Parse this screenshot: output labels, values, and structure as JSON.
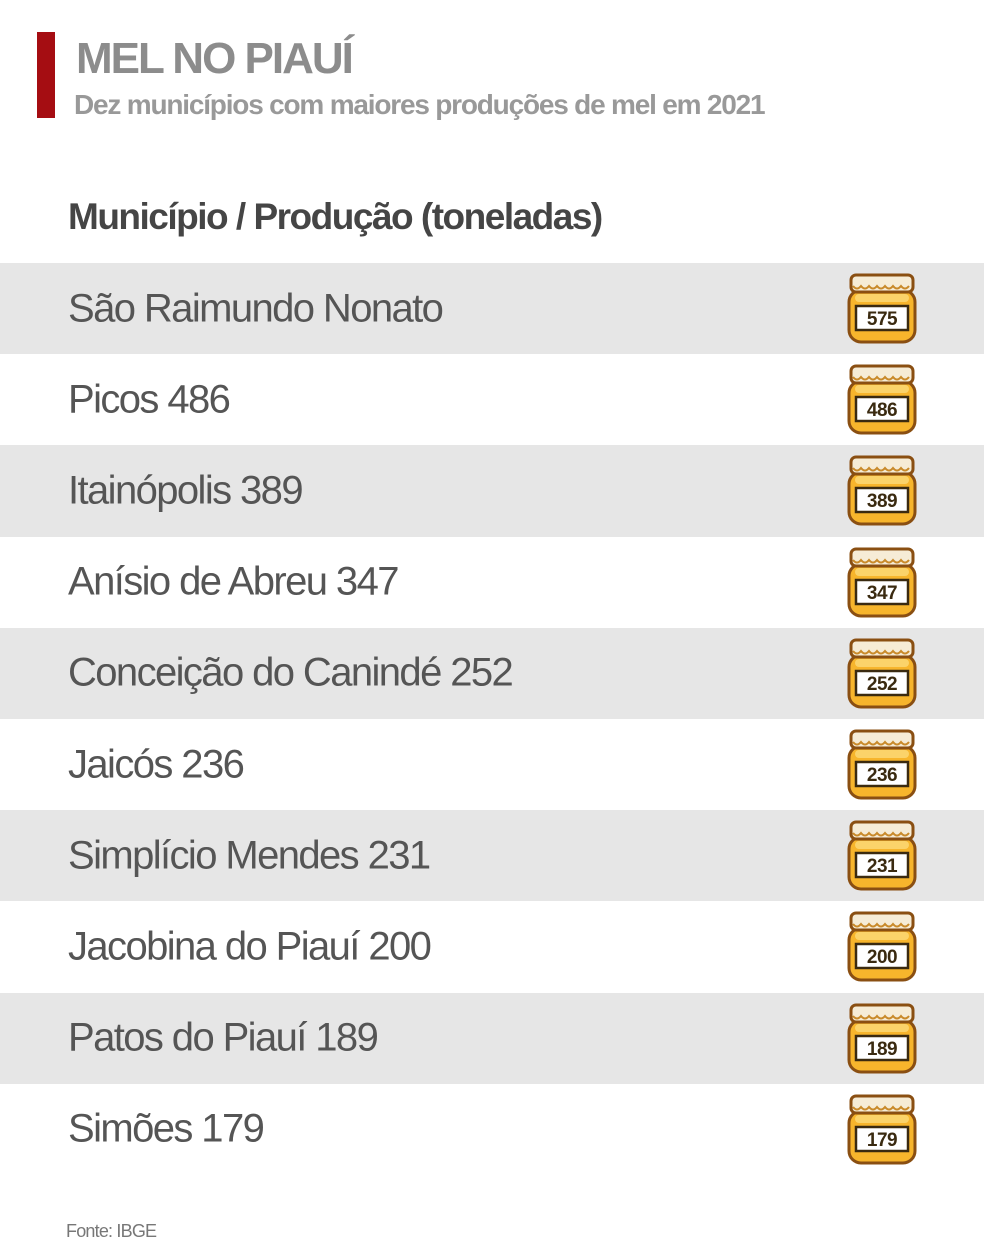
{
  "header": {
    "title": "MEL NO PIAUÍ",
    "subtitle": "Dez municípios  com maiores produções de mel em 2021"
  },
  "table": {
    "heading": "Município / Produção (toneladas)",
    "rows": [
      {
        "label": "São Raimundo Nonato",
        "jar": 575
      },
      {
        "label": "Picos 486",
        "jar": 486
      },
      {
        "label": "Itainópolis 389",
        "jar": 389
      },
      {
        "label": "Anísio de Abreu 347",
        "jar": 347
      },
      {
        "label": "Conceição do Canindé 252",
        "jar": 252
      },
      {
        "label": "Jaicós 236",
        "jar": 236
      },
      {
        "label": "Simplício Mendes 231",
        "jar": 231
      },
      {
        "label": "Jacobina do Piauí 200",
        "jar": 200
      },
      {
        "label": "Patos do Piauí 189",
        "jar": 189
      },
      {
        "label": "Simões 179",
        "jar": 179
      }
    ]
  },
  "footer": {
    "source": "Fonte: IBGE"
  }
}
